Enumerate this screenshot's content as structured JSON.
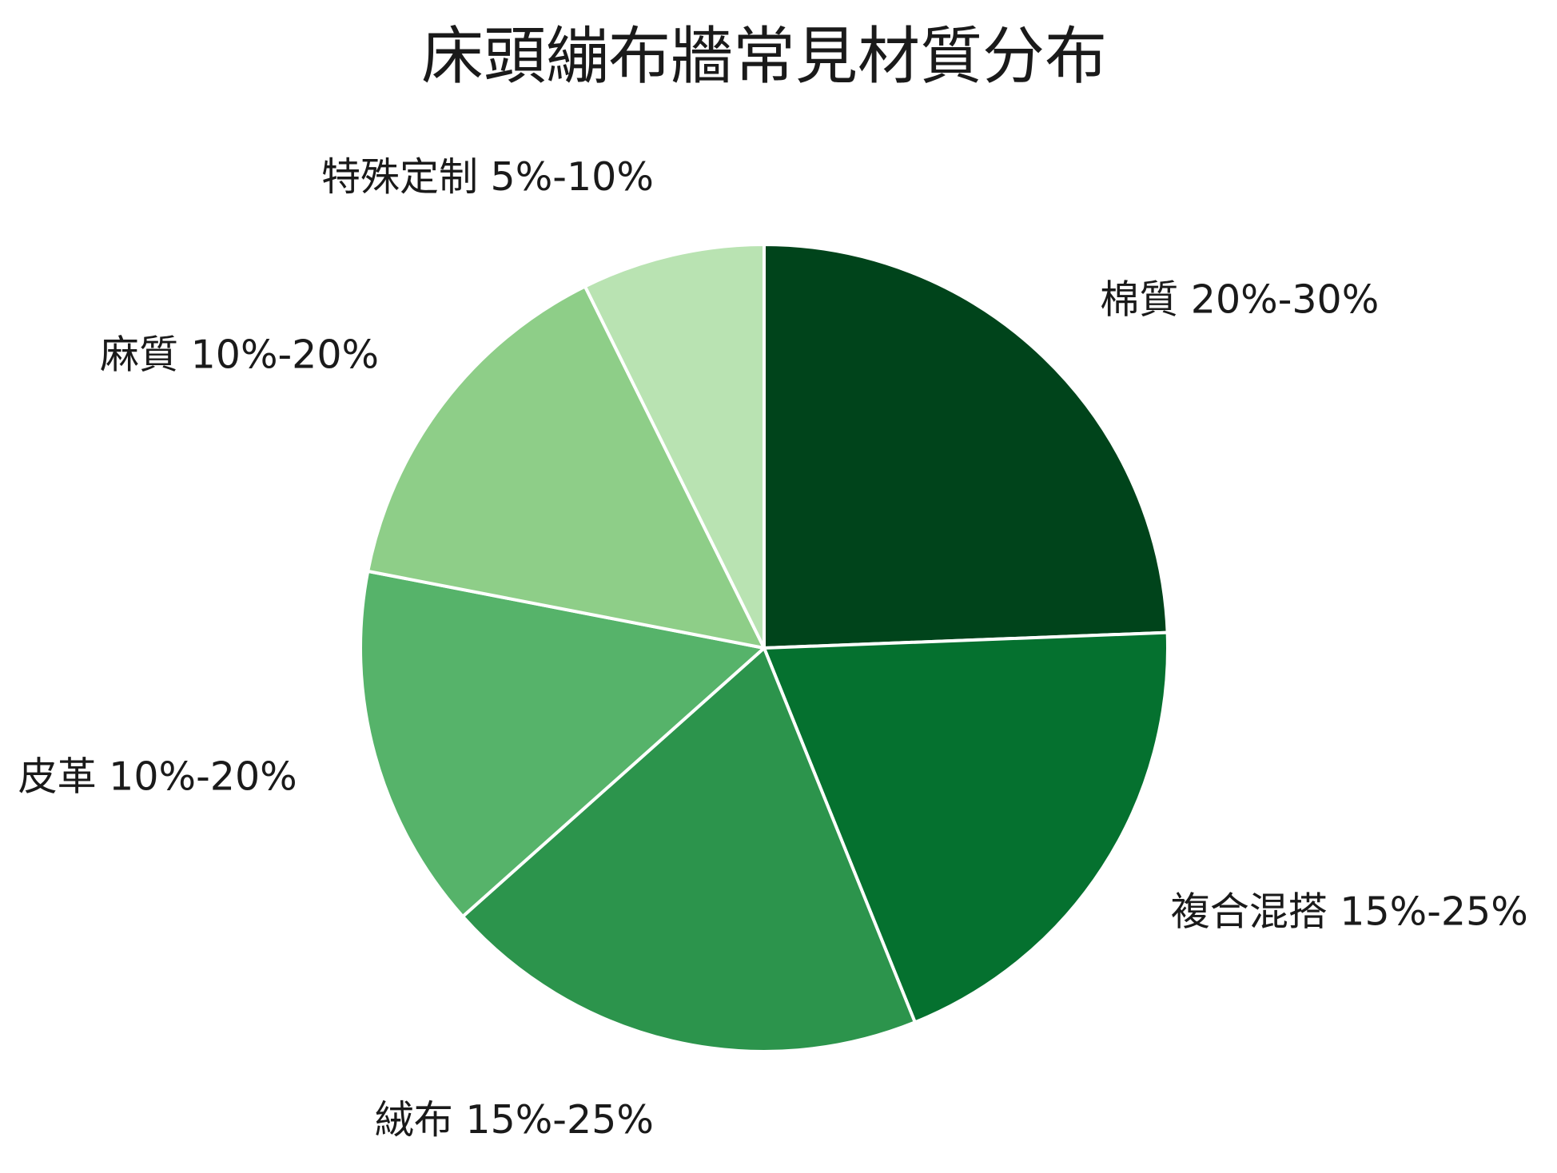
{
  "chart_data": {
    "type": "pie",
    "title": "床頭繃布牆常見材質分布",
    "start_angle_deg": 90,
    "direction": "clockwise",
    "slices": [
      {
        "name": "棉質",
        "range": "20%-30%",
        "value": 25,
        "color": "#00441b"
      },
      {
        "name": "複合混搭",
        "range": "15%-25%",
        "value": 20,
        "color": "#05712f"
      },
      {
        "name": "絨布",
        "range": "15%-25%",
        "value": 20,
        "color": "#2c944c"
      },
      {
        "name": "皮革",
        "range": "10%-20%",
        "value": 15,
        "color": "#56b36a"
      },
      {
        "name": "麻質",
        "range": "10%-20%",
        "value": 15,
        "color": "#8ece88"
      },
      {
        "name": "特殊定制",
        "range": "5%-10%",
        "value": 7.5,
        "color": "#b9e3b2"
      }
    ],
    "slice_border_color": "#ffffff",
    "legend": "none"
  }
}
